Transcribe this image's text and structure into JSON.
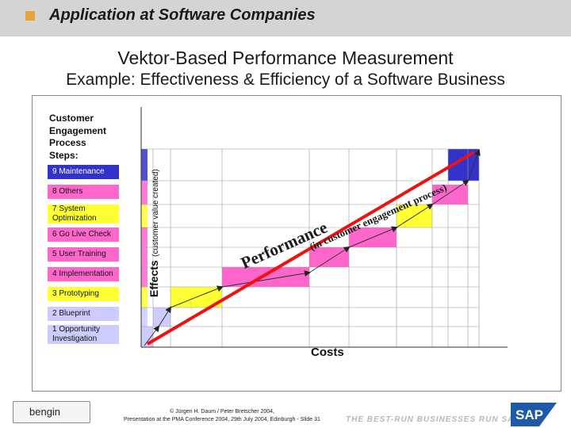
{
  "header": {
    "title": "Application at Software Companies"
  },
  "slide": {
    "title_line1": "Vektor-Based Performance Measurement",
    "title_line2": "Example: Effectiveness & Efficiency of a Software Business"
  },
  "process": {
    "title": "Customer\nEngagement\nProcess\nSteps:",
    "steps": [
      {
        "label": "9 Maintenance",
        "color": "#3333cc"
      },
      {
        "label": "8 Others",
        "color": "#ff66cc"
      },
      {
        "label": "7 System\nOptimization",
        "color": "#ffff33"
      },
      {
        "label": "6 Go Live Check",
        "color": "#ff66cc"
      },
      {
        "label": "5 User Training",
        "color": "#ff66cc"
      },
      {
        "label": "4 Implementation",
        "color": "#ff66cc"
      },
      {
        "label": "3 Prototyping",
        "color": "#ffff33"
      },
      {
        "label": "2 Blueprint",
        "color": "#ccccff"
      },
      {
        "label": "1 Opportunity\nInvestigation",
        "color": "#ccccff"
      }
    ]
  },
  "chart_data": {
    "type": "area",
    "ylabel_main": "Effects",
    "ylabel_sub": "(customer value created)",
    "xlabel": "Costs",
    "annotation": {
      "word": "Performance",
      "suffix": "(in customer engagement process)"
    },
    "colors": {
      "trend_line": "#ee1111",
      "path": "#333333"
    }
  },
  "footer": {
    "logo": "bengin",
    "copyright": "© Jürgen H. Daum / Peter Bretscher 2004,",
    "event": "Presentation at the PMA Conference 2004, 29th July 2004, Edinburgh - Slide 31",
    "tagline": "THE BEST-RUN BUSINESSES RUN SAP",
    "sap_logo": "SAP"
  }
}
